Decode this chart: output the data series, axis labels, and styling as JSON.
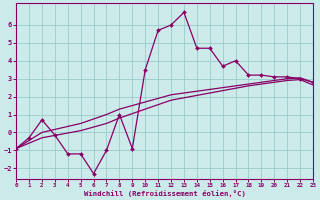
{
  "xlabel": "Windchill (Refroidissement éolien,°C)",
  "bg_color": "#cceaea",
  "line_color": "#880066",
  "grid_color": "#99cccc",
  "xlim": [
    0,
    23
  ],
  "ylim": [
    -2.6,
    7.2
  ],
  "yticks": [
    -2,
    -1,
    0,
    1,
    2,
    3,
    4,
    5,
    6
  ],
  "xticks": [
    0,
    1,
    2,
    3,
    4,
    5,
    6,
    7,
    8,
    9,
    10,
    11,
    12,
    13,
    14,
    15,
    16,
    17,
    18,
    19,
    20,
    21,
    22,
    23
  ],
  "series1_x": [
    0,
    1,
    2,
    3,
    4,
    5,
    6,
    7,
    8,
    9,
    10,
    11,
    12,
    13,
    14,
    15,
    16,
    17,
    18,
    19,
    20,
    21,
    22,
    23
  ],
  "series1_y": [
    -0.9,
    -0.3,
    0.7,
    -0.15,
    -1.2,
    -1.2,
    -2.3,
    -1.0,
    1.0,
    -0.9,
    3.5,
    5.7,
    6.0,
    6.7,
    4.7,
    4.7,
    3.7,
    4.0,
    3.2,
    3.2,
    3.1,
    3.1,
    3.0,
    2.8
  ],
  "series2_x": [
    0,
    2,
    5,
    7,
    8,
    10,
    12,
    15,
    18,
    20,
    21,
    22,
    23
  ],
  "series2_y": [
    -0.9,
    0.0,
    0.5,
    1.0,
    1.3,
    1.7,
    2.1,
    2.4,
    2.7,
    2.9,
    3.0,
    3.05,
    2.8
  ],
  "series3_x": [
    0,
    2,
    5,
    7,
    8,
    10,
    12,
    15,
    18,
    20,
    21,
    22,
    23
  ],
  "series3_y": [
    -0.9,
    -0.3,
    0.1,
    0.5,
    0.8,
    1.3,
    1.8,
    2.2,
    2.6,
    2.8,
    2.9,
    2.95,
    2.65
  ]
}
